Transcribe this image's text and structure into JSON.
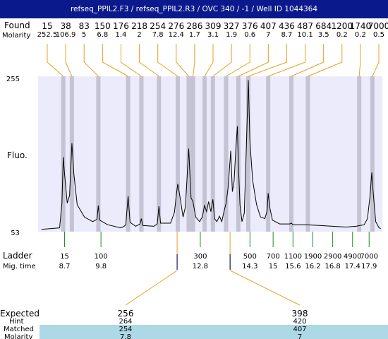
{
  "window": {
    "title": "refseq_PPIL2.F3 / refseq_PPIL2.R3 / OVC 340 / -1 / Well ID 1044364"
  },
  "labels": {
    "found": "Found",
    "molarity": "Molarity",
    "fluo": "Fluo.",
    "ladder": "Ladder",
    "mig_time": "Mig. time",
    "expected": "Expected",
    "hint": "Hint",
    "matched": "Matched",
    "molarity_bottom": "Molarity"
  },
  "colors": {
    "title_bg": "#0a1a8c",
    "plot_bg": "#ebebfb",
    "band": "#c3c3d3",
    "leader": "#e8a020",
    "ladder_tick": "#1e8c1e",
    "marker": "#1a1a7a",
    "matched_bg": "#add8e6"
  },
  "chart_data": {
    "type": "line",
    "ylabel": "Fluo.",
    "ylim": [
      53,
      255
    ],
    "y_ticks": [
      "255",
      "53"
    ],
    "found": [
      {
        "size": "15",
        "molarity": "252.5",
        "time": 8.66
      },
      {
        "size": "38",
        "molarity": "106.9",
        "time": 8.92
      },
      {
        "size": "83",
        "molarity": "5",
        "time": 9.72
      },
      {
        "size": "150",
        "molarity": "6.8",
        "time": 10.62
      },
      {
        "size": "176",
        "molarity": "1.4",
        "time": 11.02
      },
      {
        "size": "218",
        "molarity": "2",
        "time": 11.55
      },
      {
        "size": "254",
        "molarity": "7.8",
        "time": 12.12
      },
      {
        "size": "276",
        "molarity": "12.4",
        "time": 12.45
      },
      {
        "size": "286",
        "molarity": "1.7",
        "time": 12.58
      },
      {
        "size": "309",
        "molarity": "3.1",
        "time": 12.93
      },
      {
        "size": "327",
        "molarity": "1.9",
        "time": 13.18
      },
      {
        "size": "376",
        "molarity": "0.6",
        "time": 13.58
      },
      {
        "size": "407",
        "molarity": "7",
        "time": 13.95
      },
      {
        "size": "436",
        "molarity": "8.7",
        "time": 14.25
      },
      {
        "size": "487",
        "molarity": "10.1",
        "time": 14.85
      },
      {
        "size": "684",
        "molarity": "3.5",
        "time": 15.55
      },
      {
        "size": "1200",
        "molarity": "0.2",
        "time": 16.05
      },
      {
        "size": "1740",
        "molarity": "0.2",
        "time": 17.6
      },
      {
        "size": "7000",
        "molarity": "0.5",
        "time": 18.0
      }
    ],
    "ladder": [
      {
        "size": "15",
        "time": "8.7"
      },
      {
        "size": "100",
        "time": "9.8"
      },
      {
        "size": "300",
        "time": "12.8"
      },
      {
        "size": "500",
        "time": "14.3"
      },
      {
        "size": "700",
        "time": "15"
      },
      {
        "size": "1100",
        "time": "15.6"
      },
      {
        "size": "1900",
        "time": "16.2"
      },
      {
        "size": "2900",
        "time": "16.8"
      },
      {
        "size": "4900",
        "time": "17.4"
      },
      {
        "size": "7000",
        "time": "17.9"
      }
    ],
    "trace": [
      [
        8.0,
        56
      ],
      [
        8.55,
        58
      ],
      [
        8.62,
        90
      ],
      [
        8.66,
        150
      ],
      [
        8.7,
        128
      ],
      [
        8.78,
        90
      ],
      [
        8.85,
        100
      ],
      [
        8.92,
        168
      ],
      [
        8.98,
        128
      ],
      [
        9.08,
        88
      ],
      [
        9.3,
        72
      ],
      [
        9.55,
        66
      ],
      [
        9.68,
        69
      ],
      [
        9.72,
        87
      ],
      [
        9.76,
        68
      ],
      [
        10.0,
        62
      ],
      [
        10.4,
        58
      ],
      [
        10.5,
        60
      ],
      [
        10.55,
        62
      ],
      [
        10.62,
        99
      ],
      [
        10.68,
        65
      ],
      [
        10.85,
        60
      ],
      [
        10.98,
        63
      ],
      [
        11.02,
        70
      ],
      [
        11.06,
        61
      ],
      [
        11.4,
        60
      ],
      [
        11.5,
        63
      ],
      [
        11.55,
        86
      ],
      [
        11.6,
        64
      ],
      [
        11.9,
        64
      ],
      [
        12.02,
        78
      ],
      [
        12.08,
        102
      ],
      [
        12.12,
        115
      ],
      [
        12.18,
        100
      ],
      [
        12.28,
        72
      ],
      [
        12.35,
        85
      ],
      [
        12.45,
        161
      ],
      [
        12.52,
        97
      ],
      [
        12.58,
        92
      ],
      [
        12.66,
        72
      ],
      [
        12.78,
        66
      ],
      [
        12.86,
        72
      ],
      [
        12.93,
        87
      ],
      [
        12.99,
        79
      ],
      [
        13.05,
        92
      ],
      [
        13.12,
        79
      ],
      [
        13.18,
        95
      ],
      [
        13.23,
        70
      ],
      [
        13.3,
        66
      ],
      [
        13.38,
        73
      ],
      [
        13.45,
        66
      ],
      [
        13.52,
        80
      ],
      [
        13.58,
        90
      ],
      [
        13.64,
        110
      ],
      [
        13.72,
        158
      ],
      [
        13.77,
        105
      ],
      [
        13.82,
        118
      ],
      [
        13.88,
        165
      ],
      [
        13.92,
        190
      ],
      [
        13.95,
        140
      ],
      [
        14.0,
        88
      ],
      [
        14.06,
        66
      ],
      [
        14.13,
        77
      ],
      [
        14.2,
        175
      ],
      [
        14.25,
        250
      ],
      [
        14.3,
        170
      ],
      [
        14.38,
        120
      ],
      [
        14.5,
        88
      ],
      [
        14.62,
        72
      ],
      [
        14.75,
        70
      ],
      [
        14.82,
        80
      ],
      [
        14.85,
        103
      ],
      [
        14.9,
        84
      ],
      [
        14.98,
        68
      ],
      [
        15.2,
        63
      ],
      [
        15.5,
        63
      ],
      [
        15.55,
        64
      ],
      [
        15.6,
        62
      ],
      [
        16.0,
        62
      ],
      [
        16.4,
        61
      ],
      [
        16.8,
        60
      ],
      [
        17.2,
        59
      ],
      [
        17.5,
        60
      ],
      [
        17.75,
        62
      ],
      [
        17.85,
        70
      ],
      [
        17.93,
        100
      ],
      [
        17.98,
        130
      ],
      [
        18.02,
        105
      ],
      [
        18.1,
        66
      ],
      [
        18.2,
        58
      ],
      [
        18.25,
        57
      ]
    ],
    "x_range": [
      7.9,
      18.3
    ],
    "markers": [
      {
        "time": 12.1,
        "expected": "256",
        "hint": "264",
        "matched": "254",
        "molarity": "7.8"
      },
      {
        "time": 13.7,
        "expected": "398",
        "hint": "420",
        "matched": "407",
        "molarity": "7"
      }
    ]
  }
}
